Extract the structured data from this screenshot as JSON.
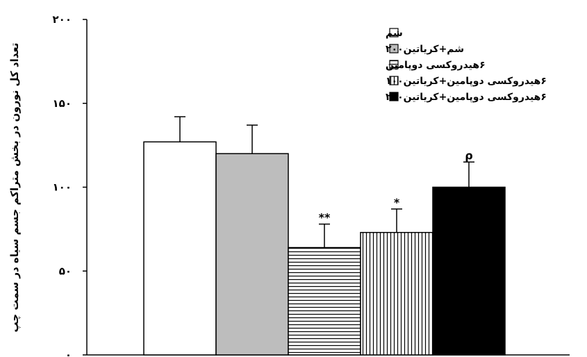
{
  "chart_data": {
    "type": "bar",
    "title": "",
    "xlabel": "",
    "ylabel": "تعداد کل نورون در بخش متراکم جسم سیاه در سمت چپ",
    "ylim": [
      0,
      200
    ],
    "yticks": [
      0,
      50,
      100,
      150,
      200
    ],
    "ytick_labels": [
      "۰",
      "۵۰",
      "۱۰۰",
      "۱۵۰",
      "۲۰۰"
    ],
    "grid": false,
    "legend_position": "top-right",
    "categories": [
      "شم",
      "شم+کریاتین۲۰۰",
      "۶هیدروکسی دوپامین",
      "۶هیدروکسی دوپامین+کریاتین۱۰۰",
      "۶هیدروکسی دوپامین+کریاتین۲۰۰"
    ],
    "values": [
      127,
      120,
      64,
      73,
      100
    ],
    "errors": [
      15,
      17,
      14,
      14,
      15
    ],
    "fills": [
      "white",
      "gray",
      "hstripe",
      "vstripe",
      "black"
    ],
    "annotations": [
      "",
      "",
      "**",
      "*",
      "ρ"
    ]
  }
}
